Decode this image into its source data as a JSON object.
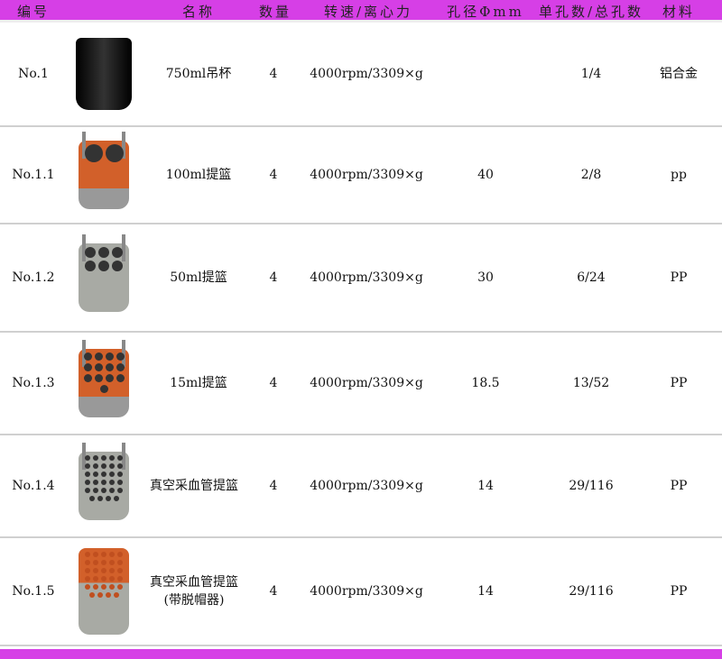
{
  "header": {
    "id": "编号",
    "name": "名称",
    "qty": "数量",
    "speed": "转速/离心力",
    "hole": "孔径Φmm",
    "count": "单孔数/总孔数",
    "material": "材料"
  },
  "colors": {
    "accent": "#d63fe6",
    "orange": "#d2602a",
    "gray": "#a8aaa4",
    "black": "#111111"
  },
  "rows": [
    {
      "id": "No.1",
      "name": "750ml吊杯",
      "qty": "4",
      "speed": "4000rpm/3309×g",
      "hole": "",
      "count": "1/4",
      "material": "铝合金",
      "image": "black-bucket"
    },
    {
      "id": "No.1.1",
      "name": "100ml提篮",
      "qty": "4",
      "speed": "4000rpm/3309×g",
      "hole": "40",
      "count": "2/8",
      "material": "pp",
      "image": "orange-basket-2-holes"
    },
    {
      "id": "No.1.2",
      "name": "50ml提篮",
      "qty": "4",
      "speed": "4000rpm/3309×g",
      "hole": "30",
      "count": "6/24",
      "material": "PP",
      "image": "gray-basket-6-holes"
    },
    {
      "id": "No.1.3",
      "name": "15ml提篮",
      "qty": "4",
      "speed": "4000rpm/3309×g",
      "hole": "18.5",
      "count": "13/52",
      "material": "PP",
      "image": "orange-basket-13-holes"
    },
    {
      "id": "No.1.4",
      "name": "真空采血管提篮",
      "qty": "4",
      "speed": "4000rpm/3309×g",
      "hole": "14",
      "count": "29/116",
      "material": "PP",
      "image": "gray-basket-29-holes"
    },
    {
      "id": "No.1.5",
      "name": "真空采血管提篮",
      "name2": "(带脱帽器)",
      "qty": "4",
      "speed": "4000rpm/3309×g",
      "hole": "14",
      "count": "29/116",
      "material": "PP",
      "image": "basket-with-decapper"
    }
  ]
}
